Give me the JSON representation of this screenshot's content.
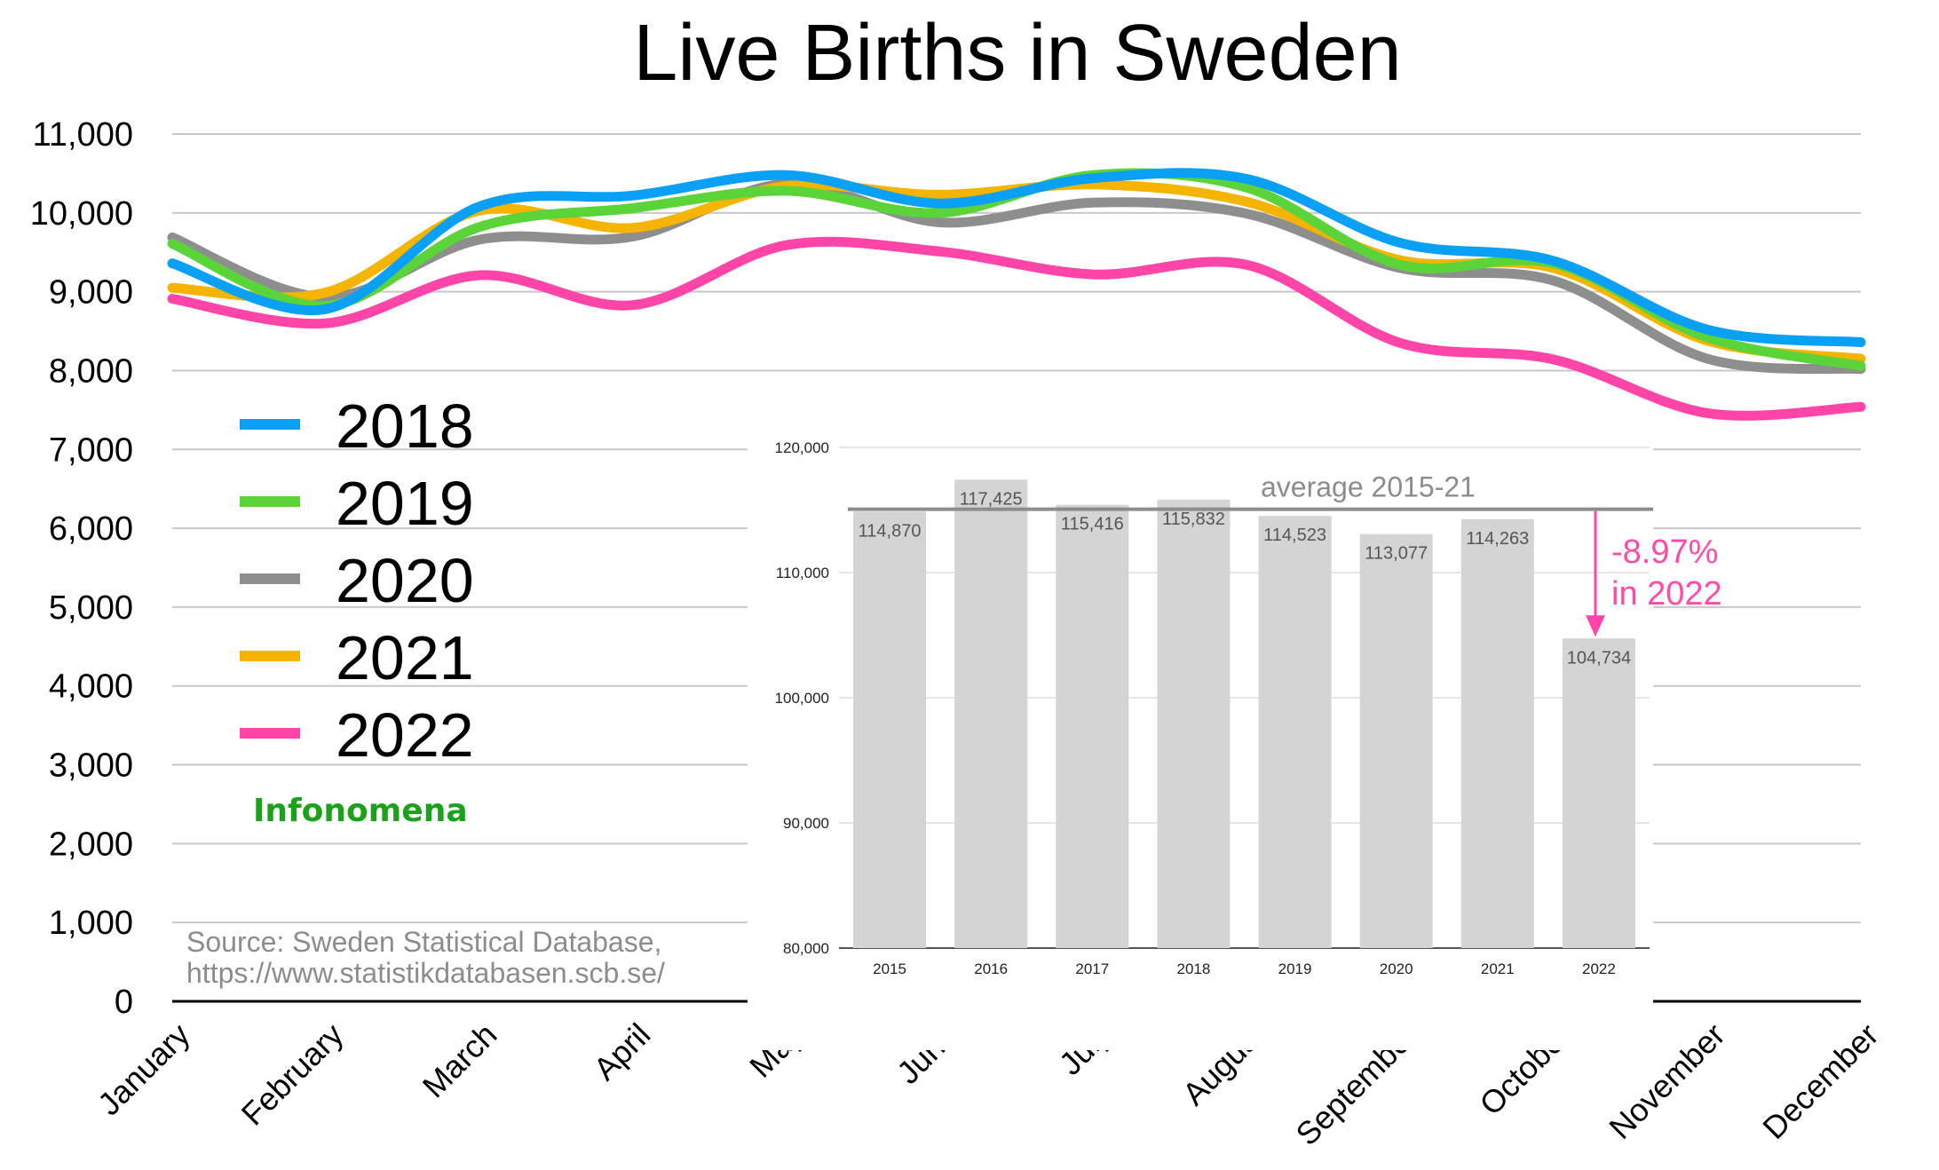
{
  "chart_data": [
    {
      "type": "line",
      "title": "Live Births in Sweden",
      "categories": [
        "January",
        "February",
        "March",
        "April",
        "May",
        "June",
        "July",
        "August",
        "September",
        "October",
        "November",
        "December"
      ],
      "ylim": [
        0,
        11000
      ],
      "yticks": [
        0,
        1000,
        2000,
        3000,
        4000,
        5000,
        6000,
        7000,
        8000,
        9000,
        10000,
        11000
      ],
      "ytick_labels": [
        "0",
        "1,000",
        "2,000",
        "3,000",
        "4,000",
        "5,000",
        "6,000",
        "7,000",
        "8,000",
        "9,000",
        "10,000",
        "11,000"
      ],
      "grid": true,
      "legend_position": "left",
      "series": [
        {
          "name": "2018",
          "color": "#0aa0f5",
          "values": [
            9360,
            8780,
            10080,
            10220,
            10480,
            10120,
            10440,
            10430,
            9620,
            9390,
            8520,
            8360
          ]
        },
        {
          "name": "2019",
          "color": "#5bd43a",
          "values": [
            9610,
            8820,
            9820,
            10060,
            10280,
            10000,
            10480,
            10320,
            9340,
            9360,
            8420,
            8060
          ]
        },
        {
          "name": "2020",
          "color": "#8e8e8e",
          "values": [
            9690,
            8930,
            9660,
            9700,
            10370,
            9880,
            10130,
            9990,
            9300,
            9140,
            8150,
            8020
          ]
        },
        {
          "name": "2021",
          "color": "#f5b400",
          "values": [
            9050,
            8990,
            10030,
            9810,
            10340,
            10230,
            10360,
            10140,
            9400,
            9300,
            8380,
            8150
          ]
        },
        {
          "name": "2022",
          "color": "#ff45a8",
          "values": [
            8910,
            8600,
            9210,
            8830,
            9590,
            9510,
            9220,
            9340,
            8350,
            8140,
            7460,
            7540
          ]
        }
      ]
    },
    {
      "type": "bar",
      "categories": [
        "2015",
        "2016",
        "2017",
        "2018",
        "2019",
        "2020",
        "2021",
        "2022"
      ],
      "values": [
        114870,
        117425,
        115416,
        115832,
        114523,
        113077,
        114263,
        104734
      ],
      "value_labels": [
        "114,870",
        "117,425",
        "115,416",
        "115,832",
        "114,523",
        "113,077",
        "114,263",
        "104,734"
      ],
      "ylim": [
        80000,
        120000
      ],
      "yticks": [
        80000,
        90000,
        100000,
        110000,
        120000
      ],
      "ytick_labels": [
        "80,000",
        "90,000",
        "100,000",
        "110,000",
        "120,000"
      ],
      "bar_color": "#d4d4d4",
      "reference_line": {
        "label": "average 2015-21",
        "value": 115058,
        "color": "#8c8c8c"
      },
      "annotation": {
        "line1": "-8.97%",
        "line2": "in 2022",
        "color": "#ff45a8"
      }
    }
  ],
  "branding": "Infonomena",
  "source": {
    "line1": "Source: Sweden Statistical Database,",
    "line2": "https://www.statistikdatabasen.scb.se/"
  }
}
